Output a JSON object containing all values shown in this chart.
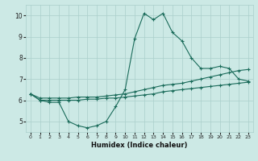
{
  "xlabel": "Humidex (Indice chaleur)",
  "xlim": [
    -0.5,
    23.5
  ],
  "ylim": [
    4.5,
    10.5
  ],
  "xticks": [
    0,
    1,
    2,
    3,
    4,
    5,
    6,
    7,
    8,
    9,
    10,
    11,
    12,
    13,
    14,
    15,
    16,
    17,
    18,
    19,
    20,
    21,
    22,
    23
  ],
  "yticks": [
    5,
    6,
    7,
    8,
    9,
    10
  ],
  "background_color": "#cce9e5",
  "grid_color": "#aacfcb",
  "line_color": "#1a6b5a",
  "series": {
    "main": [
      6.3,
      6.0,
      5.9,
      5.9,
      5.0,
      4.8,
      4.7,
      4.8,
      5.0,
      5.7,
      6.5,
      8.9,
      10.1,
      9.8,
      10.1,
      9.2,
      8.8,
      8.0,
      7.5,
      7.5,
      7.6,
      7.5,
      7.0,
      6.9
    ],
    "upper": [
      6.3,
      6.1,
      6.1,
      6.1,
      6.1,
      6.15,
      6.15,
      6.15,
      6.2,
      6.25,
      6.3,
      6.4,
      6.5,
      6.6,
      6.7,
      6.75,
      6.8,
      6.9,
      7.0,
      7.1,
      7.2,
      7.3,
      7.4,
      7.45
    ],
    "lower": [
      6.3,
      6.0,
      6.0,
      6.0,
      6.0,
      6.0,
      6.05,
      6.05,
      6.1,
      6.1,
      6.15,
      6.2,
      6.25,
      6.3,
      6.4,
      6.45,
      6.5,
      6.55,
      6.6,
      6.65,
      6.7,
      6.75,
      6.8,
      6.85
    ]
  }
}
